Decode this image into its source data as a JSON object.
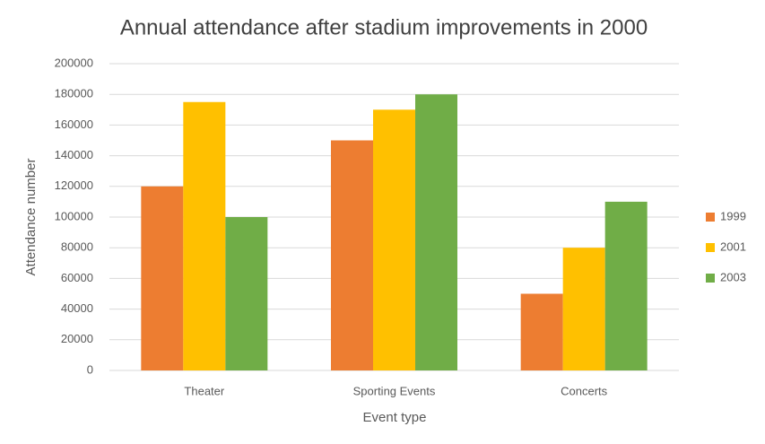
{
  "chart_data": {
    "type": "bar",
    "title": "Annual attendance after stadium improvements in 2000",
    "x_label": "Event type",
    "y_label": "Attendance number",
    "categories": [
      "Theater",
      "Sporting Events",
      "Concerts"
    ],
    "series": [
      {
        "name": "1999",
        "color": "#ed7d31",
        "values": [
          120000,
          150000,
          50000
        ]
      },
      {
        "name": "2001",
        "color": "#ffc000",
        "values": [
          175000,
          170000,
          80000
        ]
      },
      {
        "name": "2003",
        "color": "#70ad47",
        "values": [
          100000,
          180000,
          110000
        ]
      }
    ],
    "ylim": [
      0,
      200000
    ],
    "yticks": [
      0,
      20000,
      40000,
      60000,
      80000,
      100000,
      120000,
      140000,
      160000,
      180000,
      200000
    ],
    "grid": true,
    "legend": "right"
  }
}
